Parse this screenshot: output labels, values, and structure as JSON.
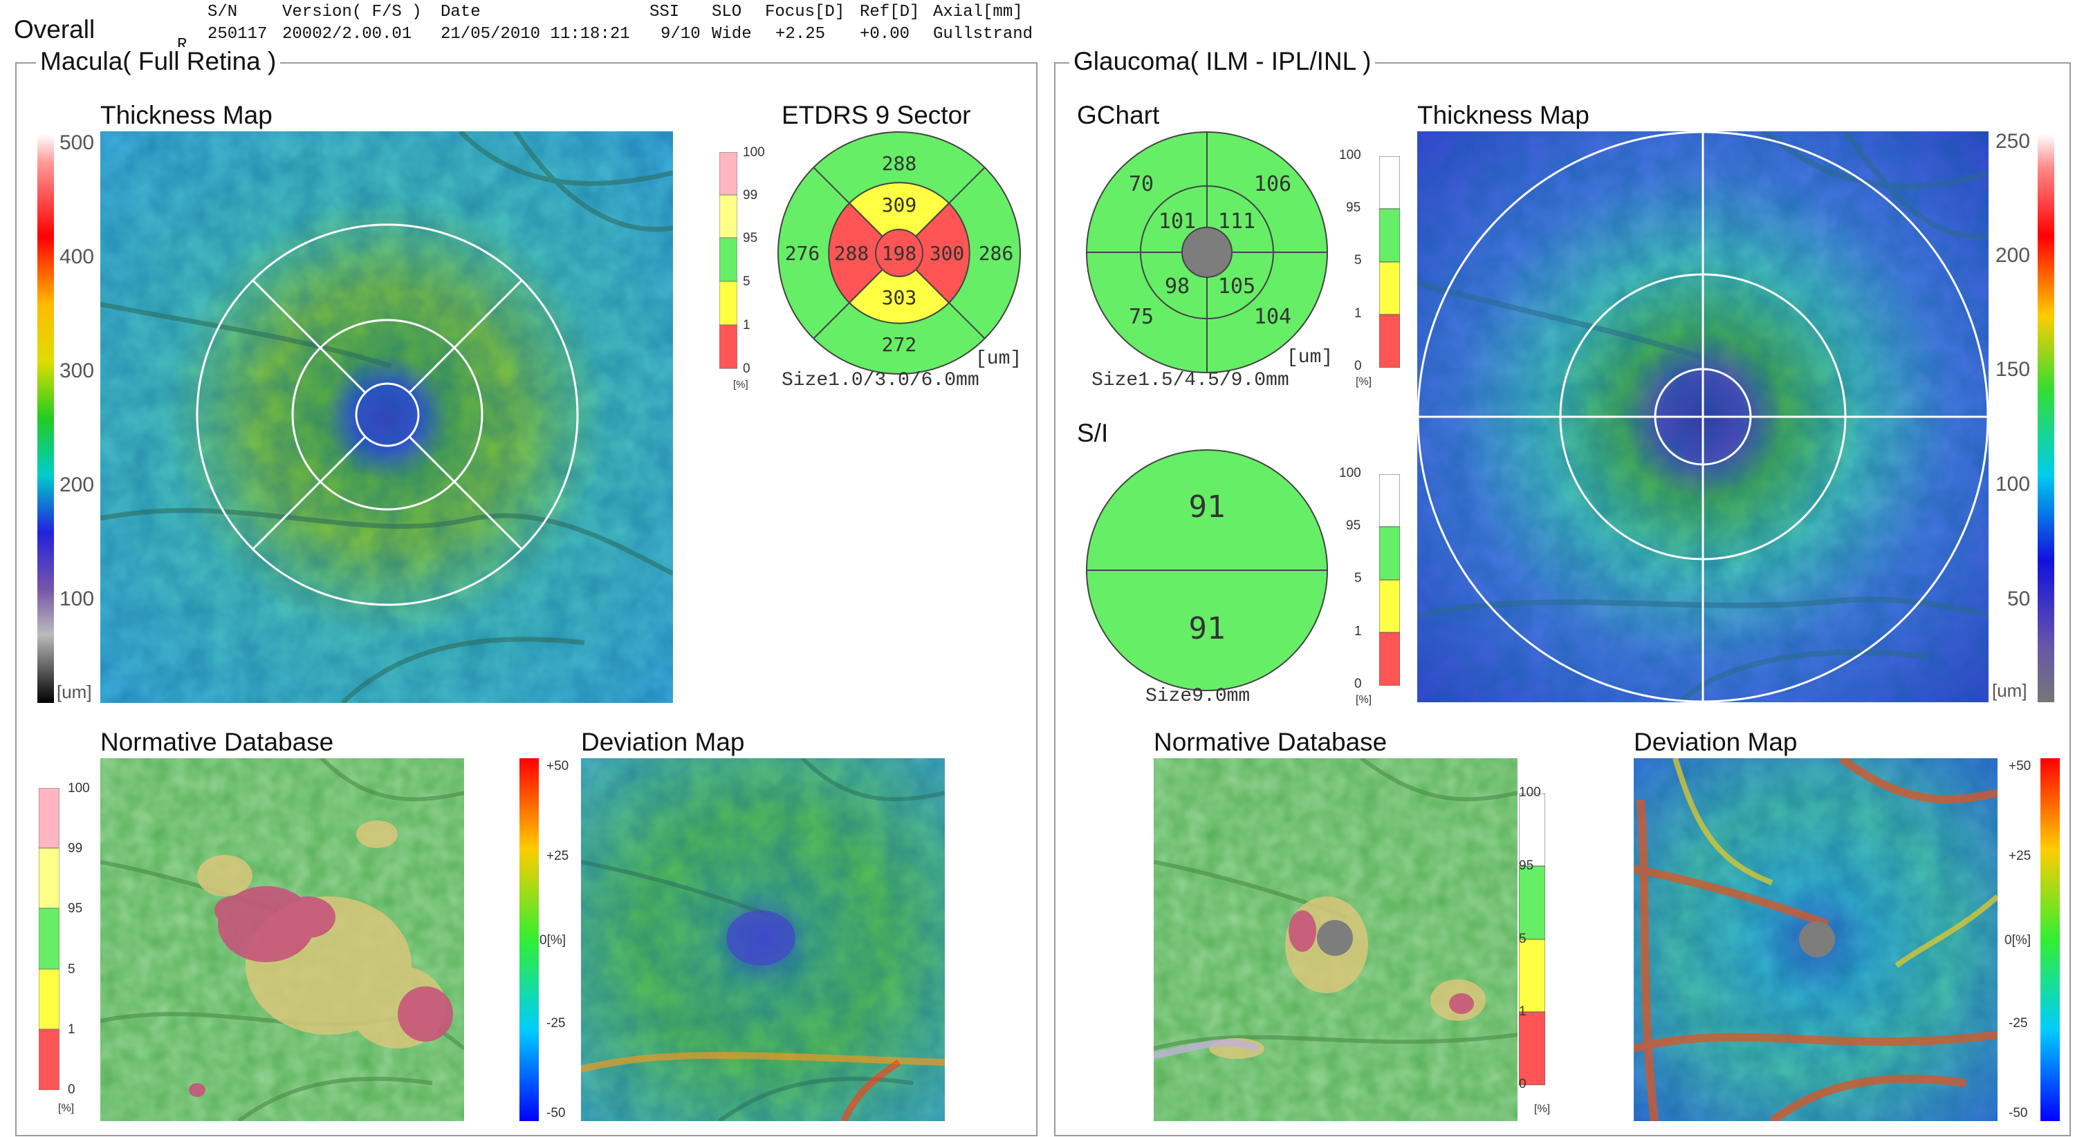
{
  "header": {
    "title": "Overall",
    "eye": "R",
    "cols": [
      {
        "label": "S/N",
        "value": "250117"
      },
      {
        "label": "Version( F/S )",
        "value": "20002/2.00.01"
      },
      {
        "label": "Date",
        "value": "21/05/2010 11:18:21"
      },
      {
        "label": "SSI",
        "value": "9/10"
      },
      {
        "label": "SLO",
        "value": "Wide"
      },
      {
        "label": "Focus[D]",
        "value": "+2.25"
      },
      {
        "label": "Ref[D]",
        "value": "+0.00"
      },
      {
        "label": "Axial[mm]",
        "value": "Gullstrand"
      }
    ]
  },
  "macula": {
    "title": "Macula( Full Retina )",
    "thickness_title": "Thickness Map",
    "thickness_scale": [
      "500",
      "400",
      "300",
      "200",
      "100",
      "[um]"
    ],
    "etdrs": {
      "title": "ETDRS 9 Sector",
      "center": "198",
      "inner": {
        "s": "309",
        "n": "300",
        "i": "303",
        "t": "288"
      },
      "outer": {
        "s": "288",
        "n": "286",
        "i": "272",
        "t": "276"
      },
      "unit": "[um]",
      "size": "Size1.0/3.0/6.0mm",
      "scale": [
        "100",
        "99",
        "95",
        "5",
        "1",
        "0",
        "[%]"
      ]
    },
    "normative_title": "Normative Database",
    "normative_scale": [
      "100",
      "99",
      "95",
      "5",
      "1",
      "0",
      "[%]"
    ],
    "deviation_title": "Deviation Map",
    "deviation_scale": [
      "+50",
      "+25",
      "0[%]",
      "-25",
      "-50"
    ]
  },
  "glaucoma": {
    "title": "Glaucoma( ILM - IPL/INL )",
    "gchart": {
      "title": "GChart",
      "outer": {
        "st": "70",
        "sn": "106",
        "it": "75",
        "in": "104"
      },
      "inner": {
        "st": "101",
        "sn": "111",
        "it": "98",
        "in": "105"
      },
      "unit": "[um]",
      "size": "Size1.5/4.5/9.0mm",
      "scale": [
        "100",
        "95",
        "5",
        "1",
        "0",
        "[%]"
      ]
    },
    "si": {
      "title": "S/I",
      "superior": "91",
      "inferior": "91",
      "size": "Size9.0mm",
      "scale": [
        "100",
        "95",
        "5",
        "1",
        "0",
        "[%]"
      ]
    },
    "thickness_title": "Thickness Map",
    "thickness_scale": [
      "250",
      "200",
      "150",
      "100",
      "50",
      "[um]"
    ],
    "normative_title": "Normative Database",
    "normative_scale": [
      "100",
      "95",
      "5",
      "1",
      "0",
      "[%]"
    ],
    "deviation_title": "Deviation Map",
    "deviation_scale": [
      "+50",
      "+25",
      "0[%]",
      "-25",
      "-50"
    ]
  },
  "colors": {
    "green": "#66ee66",
    "yellow": "#ffff44",
    "red": "#ff5555",
    "pink": "#ffb6c1",
    "gray": "#7d7d7d"
  }
}
